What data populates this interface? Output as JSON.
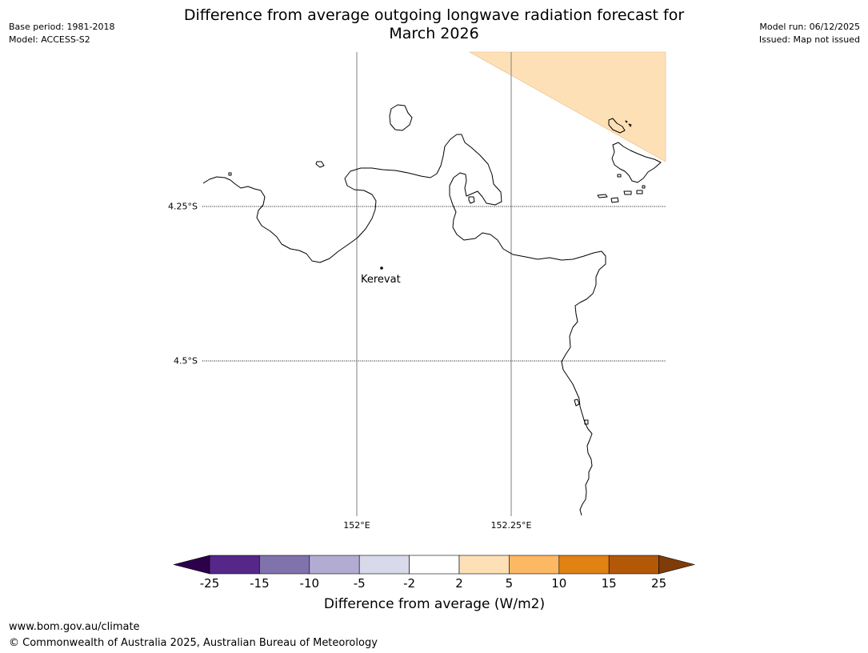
{
  "header": {
    "title_line1": "Difference from average outgoing longwave radiation forecast for",
    "title_line2": "March 2026",
    "base_period": "Base period: 1981-2018",
    "model": "Model: ACCESS-S2",
    "model_run": "Model run: 06/12/2025",
    "issued": "Issued: Map not issued"
  },
  "map": {
    "lat_labels": [
      "4.25°S",
      "4.5°S"
    ],
    "lon_labels": [
      "152°E",
      "152.25°E"
    ],
    "place": "Kerevat",
    "shading_category": "2 to 5",
    "coast_color": "#000000",
    "grid_color": "#7f7f7f"
  },
  "colorbar": {
    "ticks": [
      "-25",
      "-15",
      "-10",
      "-5",
      "-2",
      "2",
      "5",
      "10",
      "15",
      "25"
    ],
    "colors": [
      "#2d004b",
      "#542788",
      "#8073ac",
      "#b2abd2",
      "#d8daeb",
      "#ffffff",
      "#fee0b6",
      "#fdb863",
      "#e08214",
      "#b35806",
      "#7f3b08"
    ],
    "label": "Difference from average (W/m2)"
  },
  "footer": {
    "url": "www.bom.gov.au/climate",
    "copyright": "© Commonwealth of Australia 2025, Australian Bureau of Meteorology"
  }
}
